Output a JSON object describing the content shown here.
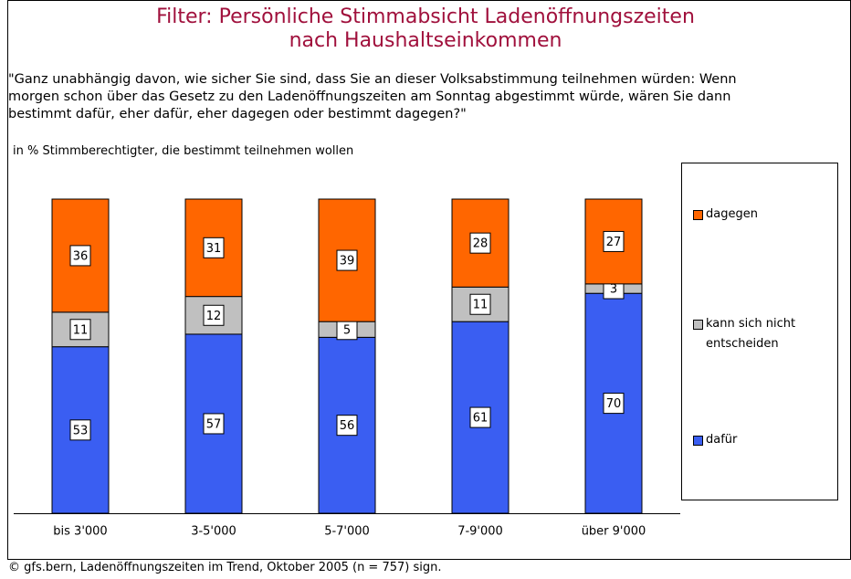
{
  "chart_data": {
    "type": "stacked_bar",
    "title": "Filter: Persönliche Stimmabsicht Ladenöffnungszeiten\nnach Haushaltseinkommen",
    "subtitle": "\"Ganz unabhängig davon, wie sicher Sie sind, dass Sie an dieser Volksabstimmung teilnehmen würden: Wenn\nmorgen schon über das Gesetz zu den Ladenöffnungszeiten am Sonntag abgestimmt würde, wären Sie dann\nbestimmt dafür, eher dafür, eher dagegen oder bestimmt dagegen?\"",
    "y_label": "in % Stimmberechtigter, die bestimmt teilnehmen wollen",
    "source": "© gfs.bern, Ladenöffnungszeiten im Trend, Oktober 2005 (n = 757) sign.",
    "categories": [
      "bis 3'000",
      "3-5'000",
      "5-7'000",
      "7-9'000",
      "über 9'000"
    ],
    "series": [
      {
        "name": "dafür",
        "color": "#3a5ef2",
        "values": [
          53,
          57,
          56,
          61,
          70
        ]
      },
      {
        "name": "kann sich nicht entscheiden",
        "color": "#c0c0c0",
        "values": [
          11,
          12,
          5,
          11,
          3
        ]
      },
      {
        "name": "dagegen",
        "color": "#ff6600",
        "values": [
          36,
          31,
          39,
          28,
          27
        ]
      }
    ],
    "ylim": [
      0,
      100
    ]
  }
}
